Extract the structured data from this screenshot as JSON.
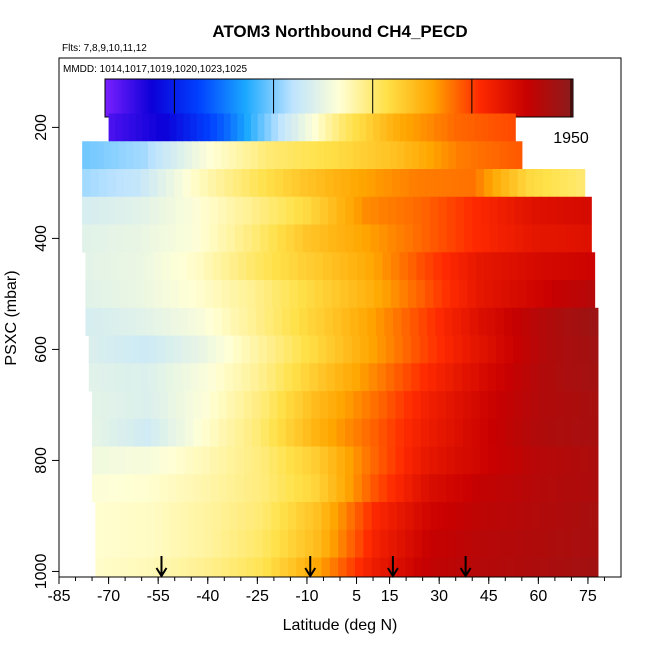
{
  "chart_data": {
    "type": "heatmap",
    "title": "ATOM3 Northbound CH4_PECD",
    "subtitle_flights": "Flts: 7,8,9,10,11,12",
    "subtitle_dates": "MMDD: 1014,1017,1019,1020,1023,1025",
    "xlabel": "Latitude (deg N)",
    "ylabel": "PSXC (mbar)",
    "xlim": [
      -85,
      85
    ],
    "ylim": [
      1010,
      75
    ],
    "x_ticks": [
      "-85",
      "-70",
      "-55",
      "-40",
      "-25",
      "-10",
      "5",
      "15",
      "30",
      "45",
      "60",
      "75"
    ],
    "y_ticks": [
      "200",
      "400",
      "600",
      "800",
      "1000"
    ],
    "colorbar": {
      "range": [
        1715,
        1951
      ],
      "ticks": [
        "1750",
        "1800",
        "1850",
        "1900",
        "1950"
      ],
      "palette": [
        "#7a1fff",
        "#0d00d8",
        "#0040ff",
        "#1aa8ff",
        "#bde3ff",
        "#ffffd6",
        "#ffe14a",
        "#ffa500",
        "#ff2a00",
        "#c80000",
        "#8a1c1c"
      ]
    },
    "bands": [
      {
        "p": 200,
        "lat_start": -70,
        "lat_end": 53,
        "values": [
          1725,
          1740,
          1770,
          1812,
          1850,
          1878,
          1892,
          1898
        ]
      },
      {
        "p": 250,
        "lat_start": -78,
        "lat_end": 55,
        "values": [
          1798,
          1806,
          1832,
          1850,
          1858,
          1870,
          1888,
          1895
        ]
      },
      {
        "p": 300,
        "lat_start": -78,
        "lat_end": 74,
        "values": [
          1805,
          1812,
          1835,
          1852,
          1868,
          1880,
          1888,
          1890,
          1860,
          1850
        ]
      },
      {
        "p": 350,
        "lat_start": -78,
        "lat_end": 76,
        "values": [
          1818,
          1822,
          1832,
          1845,
          1860,
          1885,
          1892,
          1905,
          1918,
          1922
        ]
      },
      {
        "p": 400,
        "lat_start": -78,
        "lat_end": 76,
        "values": [
          1822,
          1825,
          1832,
          1848,
          1868,
          1880,
          1892,
          1905,
          1915,
          1918
        ]
      },
      {
        "p": 450,
        "lat_start": -77,
        "lat_end": 77,
        "values": [
          1823,
          1826,
          1836,
          1852,
          1865,
          1878,
          1898,
          1915,
          1922,
          1926
        ]
      },
      {
        "p": 500,
        "lat_start": -77,
        "lat_end": 77,
        "values": [
          1822,
          1826,
          1834,
          1845,
          1860,
          1875,
          1895,
          1915,
          1925,
          1935
        ]
      },
      {
        "p": 550,
        "lat_start": -77,
        "lat_end": 78,
        "values": [
          1818,
          1822,
          1830,
          1845,
          1862,
          1880,
          1900,
          1920,
          1935,
          1945
        ]
      },
      {
        "p": 600,
        "lat_start": -76,
        "lat_end": 78,
        "values": [
          1820,
          1815,
          1825,
          1842,
          1860,
          1880,
          1900,
          1918,
          1935,
          1943
        ]
      },
      {
        "p": 650,
        "lat_start": -76,
        "lat_end": 78,
        "values": [
          1822,
          1820,
          1830,
          1844,
          1865,
          1885,
          1905,
          1922,
          1936,
          1942
        ]
      },
      {
        "p": 700,
        "lat_start": -75,
        "lat_end": 78,
        "values": [
          1823,
          1820,
          1832,
          1848,
          1872,
          1890,
          1910,
          1925,
          1936,
          1940
        ]
      },
      {
        "p": 750,
        "lat_start": -75,
        "lat_end": 78,
        "values": [
          1824,
          1816,
          1834,
          1850,
          1875,
          1893,
          1912,
          1926,
          1937,
          1940
        ]
      },
      {
        "p": 800,
        "lat_start": -75,
        "lat_end": 78,
        "values": [
          1828,
          1830,
          1838,
          1848,
          1865,
          1892,
          1915,
          1926,
          1934,
          1938
        ]
      },
      {
        "p": 850,
        "lat_start": -75,
        "lat_end": 78,
        "values": [
          1832,
          1834,
          1840,
          1848,
          1862,
          1895,
          1920,
          1930,
          1935,
          1938
        ]
      },
      {
        "p": 900,
        "lat_start": -74,
        "lat_end": 78,
        "values": [
          1834,
          1836,
          1842,
          1850,
          1870,
          1905,
          1925,
          1932,
          1936,
          1940
        ]
      },
      {
        "p": 950,
        "lat_start": -74,
        "lat_end": 78,
        "values": [
          1834,
          1836,
          1842,
          1852,
          1872,
          1908,
          1928,
          1934,
          1937,
          1940
        ]
      },
      {
        "p": 1000,
        "lat_start": -74,
        "lat_end": 78,
        "values": [
          1835,
          1838,
          1845,
          1855,
          1880,
          1912,
          1930,
          1935,
          1938,
          1942
        ]
      }
    ],
    "arrows_lat": [
      -54,
      -9,
      16,
      38
    ]
  }
}
